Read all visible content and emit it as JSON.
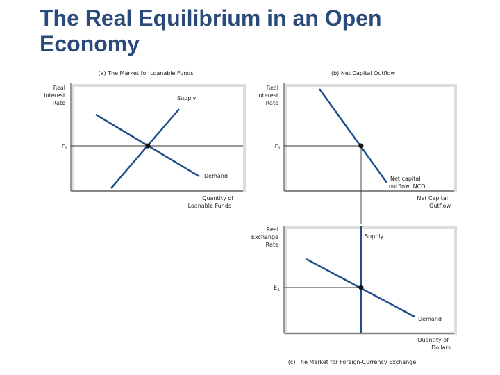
{
  "slide": {
    "title": "The Real Equilibrium in an Open Economy"
  },
  "panels": {
    "a": {
      "caption": "(a) The Market for Loanable Funds",
      "y_axis": [
        "Real",
        "Interest",
        "Rate"
      ],
      "x_axis": [
        "Quantity of",
        "Loanable Funds"
      ],
      "eq_label": "r",
      "eq_sub": "1",
      "supply_label": "Supply",
      "demand_label": "Demand"
    },
    "b": {
      "caption": "(b) Net Capital Outflow",
      "y_axis": [
        "Real",
        "Interest",
        "Rate"
      ],
      "x_axis": [
        "Net Capital",
        "Outflow"
      ],
      "eq_label": "r",
      "eq_sub": "1",
      "curve_label": [
        "Net capital",
        "outflow,  NCO"
      ]
    },
    "c": {
      "caption": "(c) The Market for Foreign-Currency Exchange",
      "y_axis": [
        "Real",
        "Exchange",
        "Rate"
      ],
      "x_axis": [
        "Quantity of",
        "Dollars"
      ],
      "eq_label": "E",
      "eq_sub": "1",
      "supply_label": "Supply",
      "demand_label": "Demand"
    }
  },
  "colors": {
    "title": "#2a4a79",
    "curve": "#1f4e8c",
    "axis": "#333333",
    "shadow": "#dcdcdc",
    "point": "#111111"
  }
}
